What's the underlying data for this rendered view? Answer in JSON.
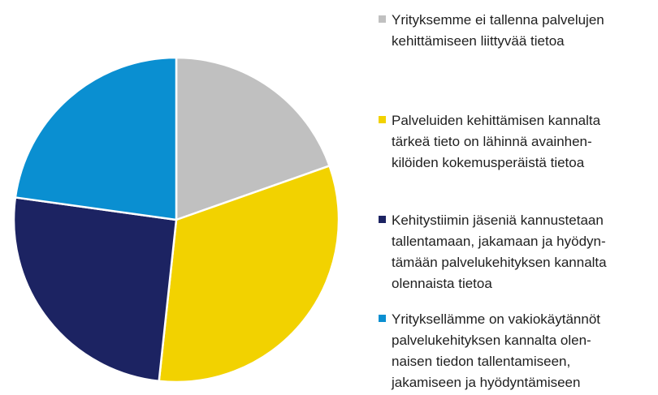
{
  "chart_data": {
    "type": "pie",
    "start_angle_deg": 0,
    "direction": "clockwise",
    "legend_position": "right",
    "slices": [
      {
        "label": "Yrityksemme ei tallenna palvelujen\nkehittämiseen liittyvää tietoa",
        "value": 19.6,
        "color": "#C0C0C0"
      },
      {
        "label": "Palveluiden kehittämisen kannalta\ntärkeä tieto on lähinnä avainhen-\nkilöiden kokemusperäistä tietoa",
        "value": 32.1,
        "color": "#F2D200"
      },
      {
        "label": "Kehitystiimin jäseniä kannustetaan\ntallentamaan, jakamaan ja hyödyn-\ntämään palvelukehityksen kannalta\nolennaista tietoa",
        "value": 25.5,
        "color": "#1C2362"
      },
      {
        "label": "Yrityksellämme on vakiokäytännöt\npalvelukehityksen kannalta olen-\nnaisen tiedon tallentamiseen,\njakamiseen ja hyödyntämiseen",
        "value": 22.8,
        "color": "#0A8FD1"
      }
    ]
  }
}
